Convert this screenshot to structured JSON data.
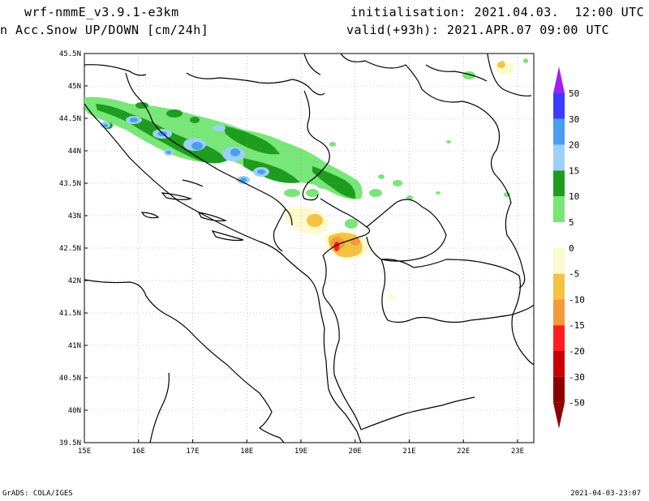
{
  "header": {
    "model": "wrf-nmmE_v3.9.1-e3km",
    "variable": "n Acc.Snow UP/DOWN [cm/24h]",
    "initialisation": "initialisation: 2021.04.03.  12:00 UTC",
    "valid": "valid(+93h): 2021.APR.07 09:00 UTC"
  },
  "footer": {
    "left": "GrADS: COLA/IGES",
    "right": "2021-04-03-23:07"
  },
  "map": {
    "lon_range": [
      15,
      23.3
    ],
    "lat_range": [
      39.5,
      45.5
    ],
    "lon_ticks": [
      "15E",
      "16E",
      "17E",
      "18E",
      "19E",
      "20E",
      "21E",
      "22E",
      "23E"
    ],
    "lat_ticks": [
      "39.5N",
      "40N",
      "40.5N",
      "41N",
      "41.5N",
      "42N",
      "42.5N",
      "43N",
      "43.5N",
      "44N",
      "44.5N",
      "45N",
      "45.5N"
    ]
  },
  "colorbar": {
    "levels": [
      "50",
      "30",
      "20",
      "15",
      "10",
      "5",
      "0",
      "-5",
      "-10",
      "-15",
      "-20",
      "-30",
      "-50"
    ],
    "colors": [
      "#a020f0",
      "#3c3cff",
      "#4a9ef0",
      "#9cd0f8",
      "#1e9c1e",
      "#78e678",
      "#ffffff",
      "#fffacd",
      "#f5c242",
      "#f59a3c",
      "#ff1e1e",
      "#c80000",
      "#8c0000"
    ],
    "top_arrow_color": "#a020f0",
    "bottom_arrow_color": "#8c0000"
  }
}
